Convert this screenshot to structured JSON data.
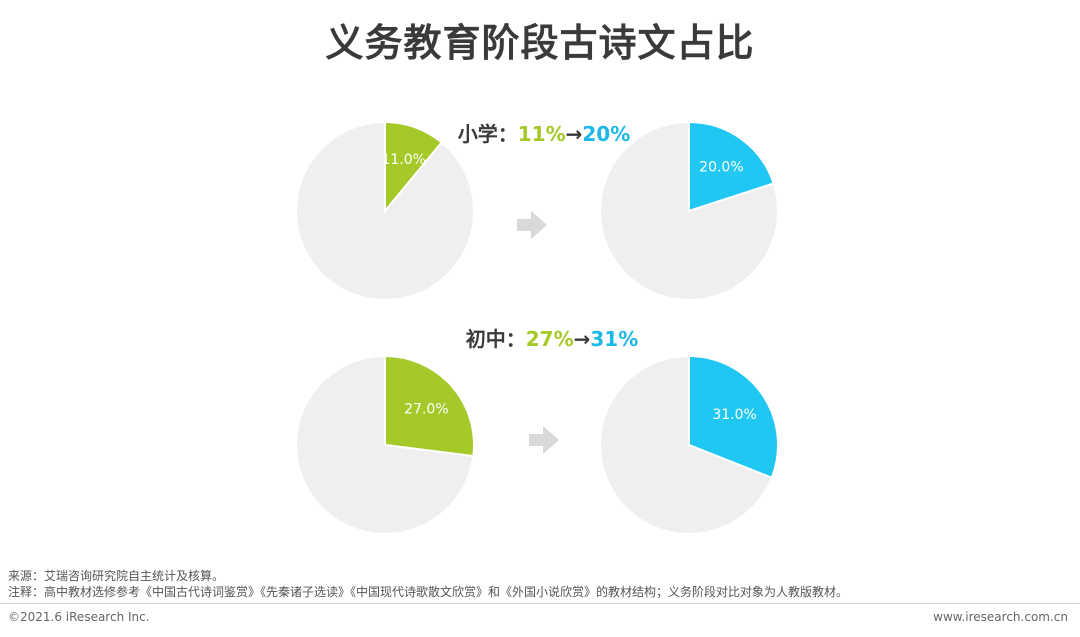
{
  "title": "义务教育阶段古诗文占比",
  "chart_data": [
    {
      "type": "pie",
      "group": "小学",
      "phase": "before",
      "slices": [
        {
          "label": "11.0%",
          "value": 11.0,
          "color": "#a5c928"
        },
        {
          "value": 89.0,
          "color": "#efefef"
        }
      ]
    },
    {
      "type": "pie",
      "group": "小学",
      "phase": "after",
      "slices": [
        {
          "label": "20.0%",
          "value": 20.0,
          "color": "#1fc7f2"
        },
        {
          "value": 80.0,
          "color": "#efefef"
        }
      ]
    },
    {
      "type": "pie",
      "group": "初中",
      "phase": "before",
      "slices": [
        {
          "label": "27.0%",
          "value": 27.0,
          "color": "#a5c928"
        },
        {
          "value": 73.0,
          "color": "#efefef"
        }
      ]
    },
    {
      "type": "pie",
      "group": "初中",
      "phase": "after",
      "slices": [
        {
          "label": "31.0%",
          "value": 31.0,
          "color": "#1fc7f2"
        },
        {
          "value": 69.0,
          "color": "#efefef"
        }
      ]
    }
  ],
  "rows": [
    {
      "label": "小学：",
      "from": "11%",
      "arrow": "→",
      "to": "20%"
    },
    {
      "label": "初中：",
      "from": "27%",
      "arrow": "→",
      "to": "31%"
    }
  ],
  "footer": {
    "source": "来源：艾瑞咨询研究院自主统计及核算。",
    "note": "注释：高中教材选修参考《中国古代诗词鉴赏》《先秦诸子选读》《中国现代诗歌散文欣赏》和《外国小说欣赏》的教材结构；义务阶段对比对象为人教版教材。",
    "copyright": "©2021.6 iResearch Inc.",
    "website": "www.iresearch.com.cn"
  },
  "colors": {
    "accent_green": "#a5c928",
    "accent_blue": "#1fc7f2",
    "pie_rest": "#efefef",
    "arrow": "#d9d9d9"
  }
}
